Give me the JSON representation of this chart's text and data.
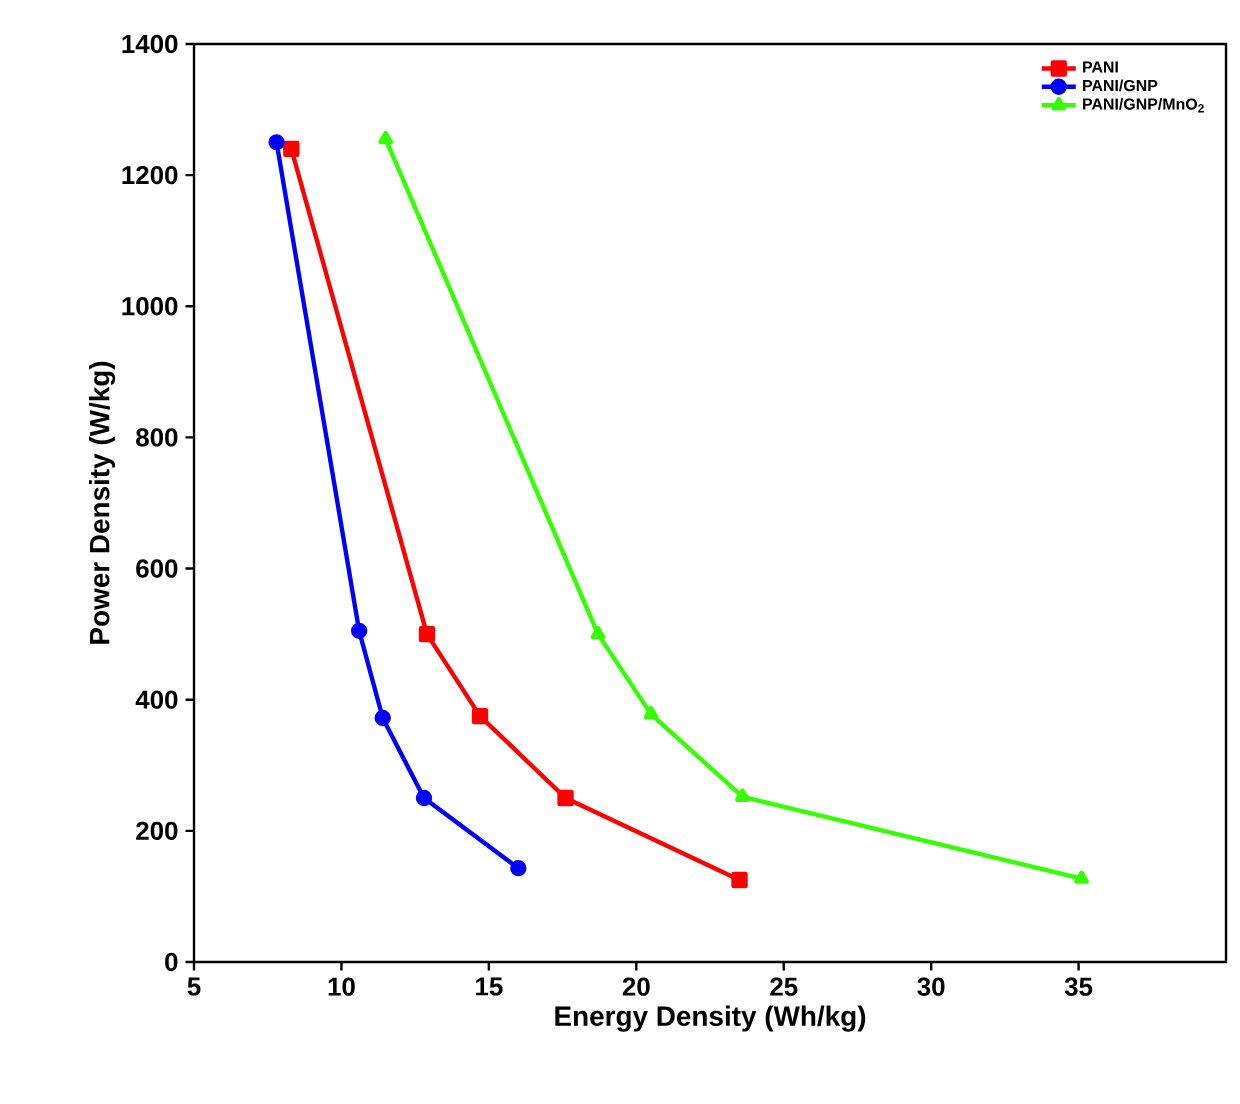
{
  "chart_data": {
    "type": "line",
    "xlabel": "Energy Density (Wh/kg)",
    "ylabel": "Power Density (W/kg)",
    "xlim": [
      5,
      40
    ],
    "xticks": [
      5,
      10,
      15,
      20,
      25,
      30,
      35
    ],
    "ylim": [
      0,
      1400
    ],
    "yticks": [
      0,
      200,
      400,
      600,
      800,
      1000,
      1200,
      1400
    ],
    "legend": "top right",
    "grid": false,
    "line_style": "solid",
    "series": [
      {
        "name": "PANI",
        "color": "#ff0000",
        "marker": "square",
        "x": [
          8.3,
          12.9,
          14.7,
          17.6,
          23.5
        ],
        "values": [
          1240,
          500,
          375,
          250,
          125
        ]
      },
      {
        "name": "PANI/GNP",
        "color": "#0000ff",
        "marker": "circle",
        "x": [
          7.8,
          10.6,
          11.4,
          12.8,
          16.0
        ],
        "values": [
          1250,
          505,
          372,
          250,
          143
        ]
      },
      {
        "name": "PANI/GNP/MnO$_{2}$",
        "color": "#33ff00",
        "marker": "triangle",
        "x": [
          11.5,
          18.7,
          20.5,
          23.6,
          35.1
        ],
        "values": [
          1255,
          500,
          378,
          252,
          127
        ]
      }
    ]
  }
}
